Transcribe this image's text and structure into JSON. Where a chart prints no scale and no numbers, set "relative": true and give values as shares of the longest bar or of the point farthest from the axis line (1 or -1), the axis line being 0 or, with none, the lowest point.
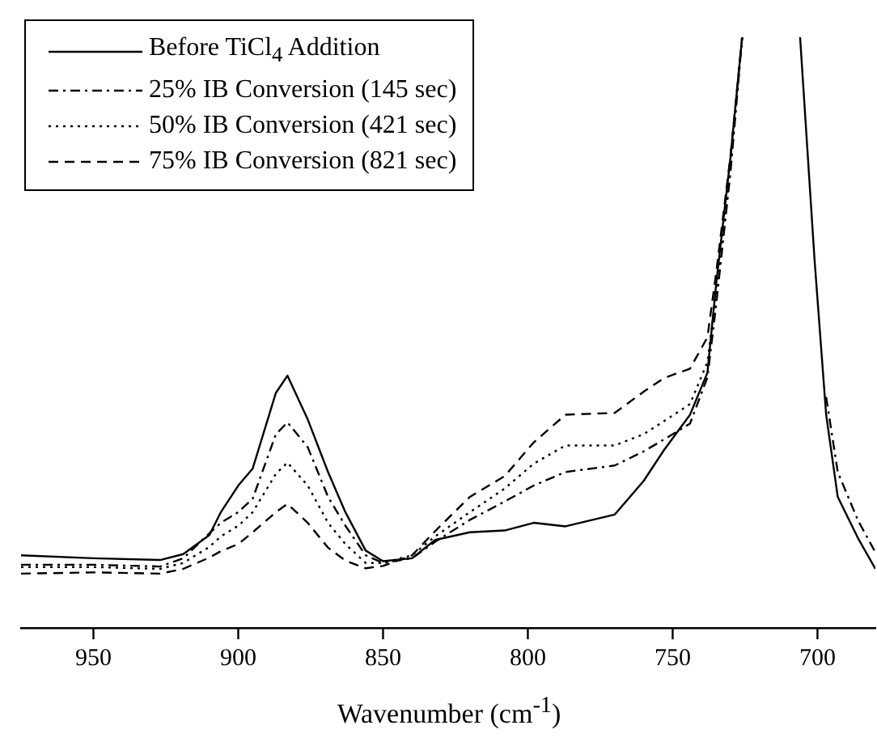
{
  "chart_data": {
    "type": "line",
    "relative": true,
    "xlabel": "Wavenumber (cm$^{-1}$)",
    "legend": "top left",
    "marker": "none",
    "x": [
      975,
      950,
      927,
      919,
      910,
      906,
      900,
      895,
      887,
      883,
      876,
      869,
      863,
      856,
      850,
      840,
      832,
      820,
      808,
      798,
      787,
      770,
      760,
      753,
      744,
      738,
      735,
      730,
      726,
      716,
      706,
      701,
      697,
      693,
      686,
      680
    ],
    "xlim": [
      975,
      680
    ],
    "xticks": [
      950,
      900,
      850,
      800,
      750,
      700
    ],
    "series": [
      {
        "name": "Before TiCl$_{4}$ Addition",
        "color": "#000000",
        "line_style": "solid",
        "values": [
          0.123,
          0.118,
          0.115,
          0.125,
          0.157,
          0.196,
          0.241,
          0.27,
          0.398,
          0.427,
          0.353,
          0.264,
          0.196,
          0.131,
          0.113,
          0.118,
          0.149,
          0.162,
          0.165,
          0.178,
          0.172,
          0.192,
          0.249,
          0.301,
          0.361,
          0.432,
          0.581,
          0.798,
          1,
          null,
          1,
          0.623,
          0.361,
          0.222,
          0.152,
          0.1
        ]
      },
      {
        "name": "25% IB Conversion (145 sec)",
        "color": "#000000",
        "line_style": "dashdot",
        "values": [
          0.107,
          0.107,
          0.104,
          0.118,
          0.16,
          0.178,
          0.196,
          0.219,
          0.328,
          0.348,
          0.306,
          0.222,
          0.173,
          0.123,
          0.11,
          0.118,
          0.146,
          0.183,
          0.214,
          0.241,
          0.264,
          0.275,
          0.299,
          0.319,
          0.346,
          0.424,
          0.546,
          0.773,
          1,
          null,
          null,
          null,
          0.391,
          0.264,
          0.182,
          0.128
        ]
      },
      {
        "name": "50% IB Conversion (421 sec)",
        "color": "#000000",
        "line_style": "dotted",
        "values": [
          0.103,
          0.103,
          0.1,
          0.11,
          0.137,
          0.155,
          0.173,
          0.196,
          0.261,
          0.28,
          0.241,
          0.178,
          0.142,
          0.11,
          0.11,
          0.123,
          0.155,
          0.196,
          0.236,
          0.278,
          0.309,
          0.309,
          0.328,
          0.35,
          0.379,
          0.45,
          0.564,
          0.782,
          1,
          null,
          null,
          null,
          null,
          null,
          null,
          null
        ]
      },
      {
        "name": "75% IB Conversion (821 sec)",
        "color": "#000000",
        "line_style": "dashed",
        "values": [
          0.092,
          0.094,
          0.092,
          0.1,
          0.119,
          0.13,
          0.142,
          0.162,
          0.196,
          0.21,
          0.178,
          0.136,
          0.114,
          0.101,
          0.105,
          0.123,
          0.164,
          0.222,
          0.257,
          0.314,
          0.361,
          0.364,
          0.4,
          0.423,
          0.439,
          0.492,
          0.6,
          0.8,
          1,
          null,
          null,
          null,
          null,
          null,
          null,
          null
        ]
      }
    ]
  }
}
